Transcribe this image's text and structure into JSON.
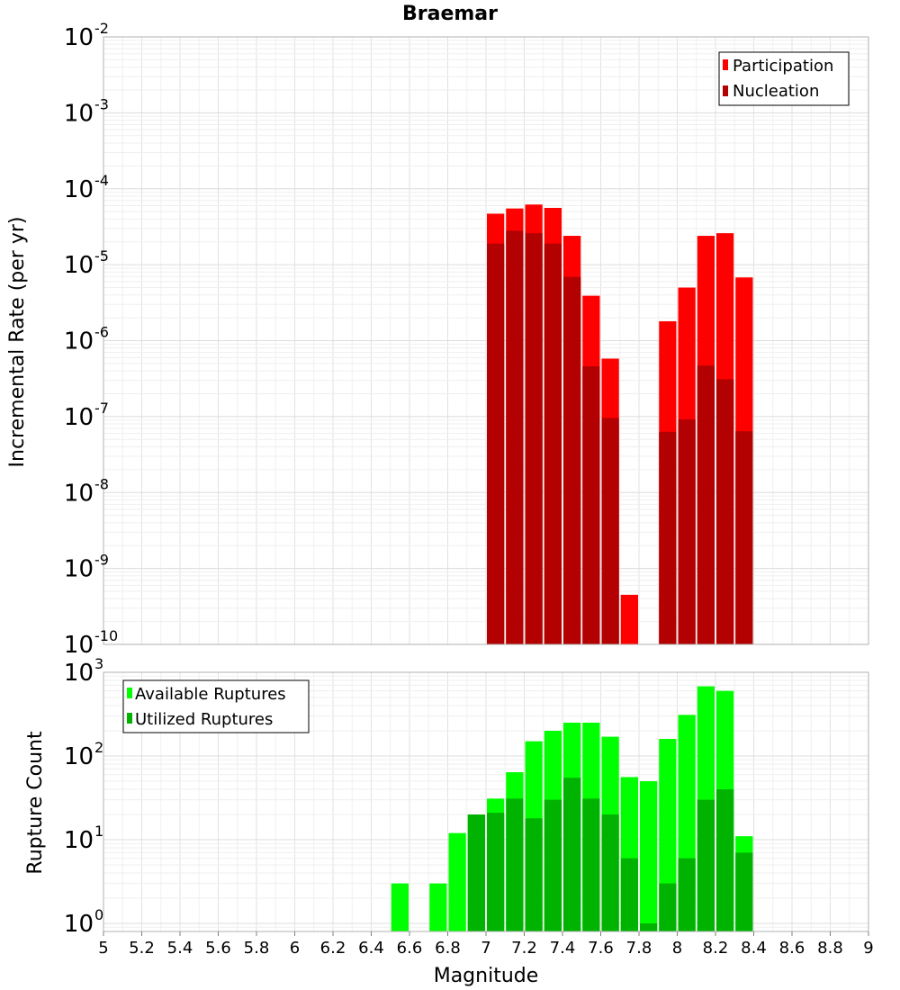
{
  "chart_data": [
    {
      "type": "bar",
      "title": "Braemar",
      "xlabel": "",
      "ylabel": "Incremental Rate (per yr)",
      "yscale": "log",
      "ylim": [
        1e-10,
        0.01
      ],
      "xlim": [
        5,
        9
      ],
      "bar_width": 0.1,
      "y_ticks": [
        {
          "base": "10",
          "exp": "-10",
          "value": 1e-10
        },
        {
          "base": "10",
          "exp": "-9",
          "value": 1e-09
        },
        {
          "base": "10",
          "exp": "-8",
          "value": 1e-08
        },
        {
          "base": "10",
          "exp": "-7",
          "value": 1e-07
        },
        {
          "base": "10",
          "exp": "-6",
          "value": 1e-06
        },
        {
          "base": "10",
          "exp": "-5",
          "value": 1e-05
        },
        {
          "base": "10",
          "exp": "-4",
          "value": 0.0001
        },
        {
          "base": "10",
          "exp": "-3",
          "value": 0.001
        },
        {
          "base": "10",
          "exp": "-2",
          "value": 0.01
        }
      ],
      "legend": {
        "placement": "top-right"
      },
      "series": [
        {
          "name": "Participation",
          "color": "#ff0000",
          "points": [
            {
              "x": 7.05,
              "y": 4.7e-05
            },
            {
              "x": 7.15,
              "y": 5.5e-05
            },
            {
              "x": 7.25,
              "y": 6.2e-05
            },
            {
              "x": 7.35,
              "y": 5.6e-05
            },
            {
              "x": 7.45,
              "y": 2.4e-05
            },
            {
              "x": 7.55,
              "y": 3.9e-06
            },
            {
              "x": 7.65,
              "y": 5.8e-07
            },
            {
              "x": 7.75,
              "y": 4.5e-10
            },
            {
              "x": 7.95,
              "y": 1.8e-06
            },
            {
              "x": 8.05,
              "y": 5e-06
            },
            {
              "x": 8.15,
              "y": 2.4e-05
            },
            {
              "x": 8.25,
              "y": 2.6e-05
            },
            {
              "x": 8.35,
              "y": 6.8e-06
            }
          ]
        },
        {
          "name": "Nucleation",
          "color": "#b30000",
          "points": [
            {
              "x": 7.05,
              "y": 1.9e-05
            },
            {
              "x": 7.15,
              "y": 2.8e-05
            },
            {
              "x": 7.25,
              "y": 2.6e-05
            },
            {
              "x": 7.35,
              "y": 1.9e-05
            },
            {
              "x": 7.45,
              "y": 6.9e-06
            },
            {
              "x": 7.55,
              "y": 4.6e-07
            },
            {
              "x": 7.65,
              "y": 9.6e-08
            },
            {
              "x": 7.95,
              "y": 6.3e-08
            },
            {
              "x": 8.05,
              "y": 9.2e-08
            },
            {
              "x": 8.15,
              "y": 4.7e-07
            },
            {
              "x": 8.25,
              "y": 3.1e-07
            },
            {
              "x": 8.35,
              "y": 6.4e-08
            }
          ]
        }
      ]
    },
    {
      "type": "bar",
      "title": "",
      "xlabel": "Magnitude",
      "ylabel": "Rupture Count",
      "yscale": "log",
      "ylim": [
        0.8,
        1000
      ],
      "xlim": [
        5,
        9
      ],
      "bar_width": 0.1,
      "y_ticks": [
        {
          "base": "10",
          "exp": "0",
          "value": 1
        },
        {
          "base": "10",
          "exp": "1",
          "value": 10
        },
        {
          "base": "10",
          "exp": "2",
          "value": 100
        },
        {
          "base": "10",
          "exp": "3",
          "value": 1000
        }
      ],
      "x_ticks": [
        "5",
        "5.2",
        "5.4",
        "5.6",
        "5.8",
        "6",
        "6.2",
        "6.4",
        "6.6",
        "6.8",
        "7",
        "7.2",
        "7.4",
        "7.6",
        "7.8",
        "8",
        "8.2",
        "8.4",
        "8.6",
        "8.8",
        "9"
      ],
      "legend": {
        "placement": "top-left"
      },
      "series": [
        {
          "name": "Available Ruptures",
          "color": "#00ff00",
          "points": [
            {
              "x": 6.55,
              "y": 3
            },
            {
              "x": 6.75,
              "y": 3
            },
            {
              "x": 6.85,
              "y": 12
            },
            {
              "x": 6.95,
              "y": 20
            },
            {
              "x": 7.05,
              "y": 31
            },
            {
              "x": 7.15,
              "y": 64
            },
            {
              "x": 7.25,
              "y": 150
            },
            {
              "x": 7.35,
              "y": 200
            },
            {
              "x": 7.45,
              "y": 250
            },
            {
              "x": 7.55,
              "y": 250
            },
            {
              "x": 7.65,
              "y": 170
            },
            {
              "x": 7.75,
              "y": 56
            },
            {
              "x": 7.85,
              "y": 50
            },
            {
              "x": 7.95,
              "y": 160
            },
            {
              "x": 8.05,
              "y": 310
            },
            {
              "x": 8.15,
              "y": 680
            },
            {
              "x": 8.25,
              "y": 600
            },
            {
              "x": 8.35,
              "y": 11
            }
          ]
        },
        {
          "name": "Utilized Ruptures",
          "color": "#00b300",
          "points": [
            {
              "x": 6.95,
              "y": 20
            },
            {
              "x": 7.05,
              "y": 21
            },
            {
              "x": 7.15,
              "y": 31
            },
            {
              "x": 7.25,
              "y": 18
            },
            {
              "x": 7.35,
              "y": 30
            },
            {
              "x": 7.45,
              "y": 55
            },
            {
              "x": 7.55,
              "y": 31
            },
            {
              "x": 7.65,
              "y": 20
            },
            {
              "x": 7.75,
              "y": 6
            },
            {
              "x": 7.85,
              "y": 1
            },
            {
              "x": 7.95,
              "y": 3
            },
            {
              "x": 8.05,
              "y": 6
            },
            {
              "x": 8.15,
              "y": 30
            },
            {
              "x": 8.25,
              "y": 40
            },
            {
              "x": 8.35,
              "y": 7
            }
          ]
        }
      ]
    }
  ]
}
